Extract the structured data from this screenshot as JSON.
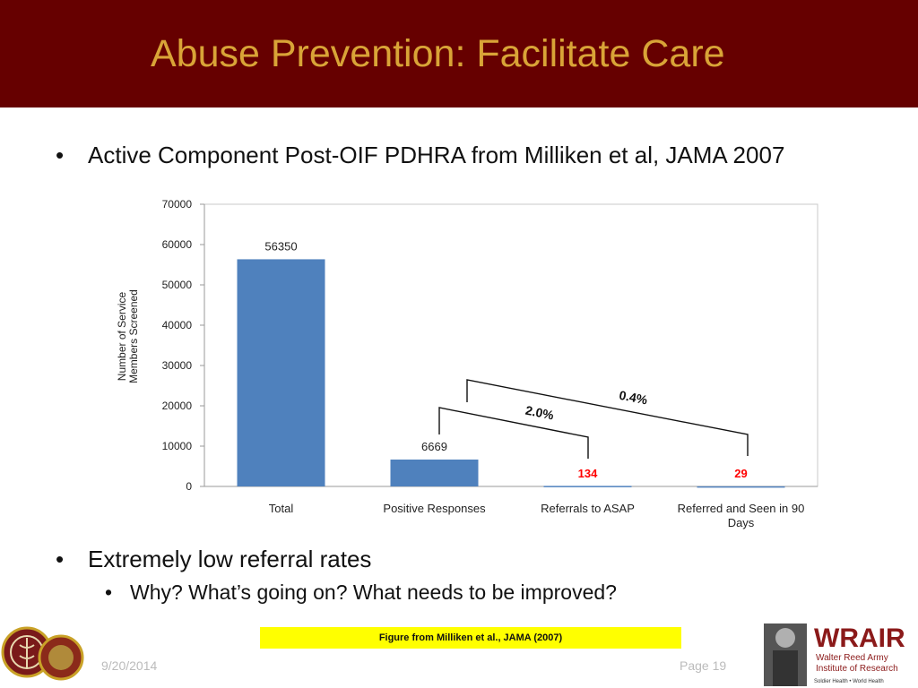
{
  "slide": {
    "title": "Abuse Prevention:  Facilitate Care",
    "bullet1": "Active Component Post-OIF PDHRA from Milliken et al, JAMA 2007",
    "bullet2": "Extremely low referral rates",
    "sub_bullet": "Why?  What’s going on?  What needs to be improved?",
    "bullet_glyph": "•",
    "caption": "Figure from Milliken et al., JAMA (2007)",
    "date": "9/20/2014",
    "page": "Page 19",
    "logo_text": {
      "wrair": "WRAIR",
      "line1": "Walter Reed Army",
      "line2": "Institute of Research",
      "tagline": "Soldier Health • World Health"
    },
    "colors": {
      "title_bar": "#660000",
      "title_text": "#d9a437",
      "bar": "#4f81bd",
      "highlight_label": "#ff0000",
      "caption_bg": "#ffff00"
    }
  },
  "chart_data": {
    "type": "bar",
    "categories": [
      "Total",
      "Positive Responses",
      "Referrals to ASAP",
      "Referred and Seen in 90 Days"
    ],
    "values": [
      56350,
      6669,
      134,
      29
    ],
    "data_labels": [
      "56350",
      "6669",
      "134",
      "29"
    ],
    "highlighted_labels": [
      false,
      false,
      true,
      true
    ],
    "ylabel": "Number of Service Members Screened",
    "ylim": [
      0,
      70000
    ],
    "yticks": [
      0,
      10000,
      20000,
      30000,
      40000,
      50000,
      60000,
      70000
    ],
    "annotations": [
      {
        "text": "2.0%",
        "from": "Positive Responses",
        "to": "Referrals to ASAP"
      },
      {
        "text": "0.4%",
        "from": "Positive Responses",
        "to": "Referred and Seen in 90 Days"
      }
    ],
    "grid": false,
    "legend": "none"
  }
}
